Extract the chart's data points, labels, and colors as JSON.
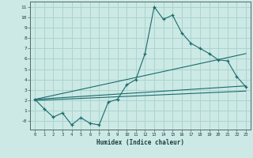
{
  "title": "",
  "xlabel": "Humidex (Indice chaleur)",
  "ylabel": "",
  "bg_color": "#cce9e5",
  "grid_color": "#aad4cf",
  "line_color": "#1a6b6b",
  "xlim": [
    -0.5,
    23.5
  ],
  "ylim": [
    -0.8,
    11.5
  ],
  "xticks": [
    0,
    1,
    2,
    3,
    4,
    5,
    6,
    7,
    8,
    9,
    10,
    11,
    12,
    13,
    14,
    15,
    16,
    17,
    18,
    19,
    20,
    21,
    22,
    23
  ],
  "yticks": [
    0,
    1,
    2,
    3,
    4,
    5,
    6,
    7,
    8,
    9,
    10,
    11
  ],
  "ytick_labels": [
    "-0",
    "1",
    "2",
    "3",
    "4",
    "5",
    "6",
    "7",
    "8",
    "9",
    "10",
    "11"
  ],
  "main_x": [
    0,
    1,
    2,
    3,
    4,
    5,
    6,
    7,
    8,
    9,
    10,
    11,
    12,
    13,
    14,
    15,
    16,
    17,
    18,
    19,
    20,
    21,
    22,
    23
  ],
  "main_y": [
    2.1,
    1.2,
    0.4,
    0.8,
    -0.35,
    0.35,
    -0.2,
    -0.35,
    1.85,
    2.1,
    3.5,
    4.0,
    6.5,
    11.0,
    9.8,
    10.2,
    8.5,
    7.5,
    7.0,
    6.5,
    5.9,
    5.8,
    4.3,
    3.3
  ],
  "reg_lines": [
    {
      "x": [
        0,
        23
      ],
      "y": [
        2.1,
        3.4
      ]
    },
    {
      "x": [
        0,
        23
      ],
      "y": [
        2.1,
        6.5
      ]
    },
    {
      "x": [
        0,
        23
      ],
      "y": [
        2.0,
        2.9
      ]
    }
  ]
}
